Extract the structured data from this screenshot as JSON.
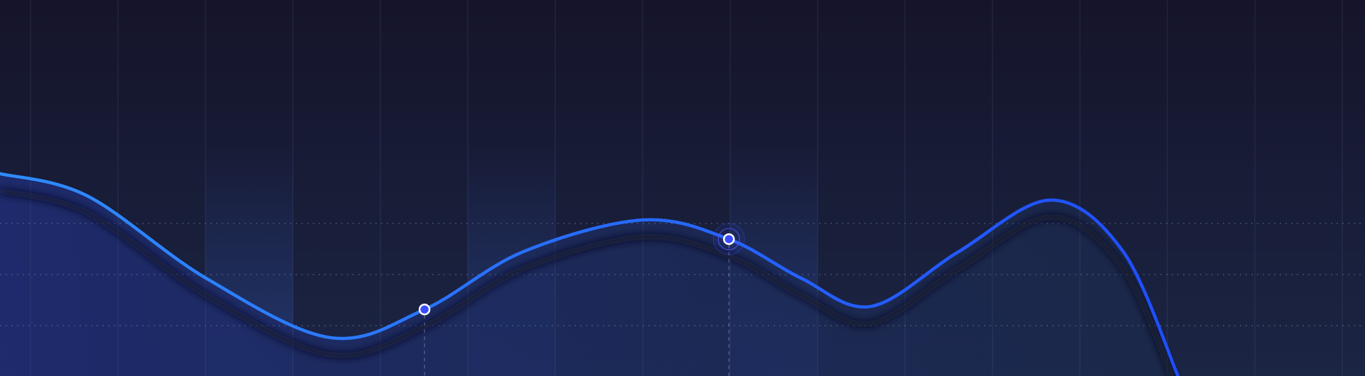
{
  "chart_data": {
    "type": "area",
    "title": "",
    "xlabel": "",
    "ylabel": "",
    "xlim": [
      0,
      100
    ],
    "ylim": [
      0,
      100
    ],
    "grid": {
      "vertical": true,
      "horizontal_dotted": true
    },
    "legend": "none",
    "series": [
      {
        "x": [
          0,
          6.4,
          15.1,
          24.2,
          31.1,
          38.3,
          47.1,
          53.4,
          58.7,
          63.8,
          70.2,
          77.0,
          82.3,
          86.3
        ],
        "y": [
          53.8,
          47.9,
          26.0,
          10.2,
          17.7,
          33.0,
          41.5,
          36.4,
          26.0,
          18.5,
          33.0,
          46.8,
          33.0,
          0
        ]
      }
    ],
    "markers": [
      {
        "index": 4,
        "style": "plain"
      },
      {
        "index": 7,
        "style": "halo"
      }
    ],
    "highlighted_columns": [
      3,
      6,
      9
    ],
    "colors": {
      "background_top": "#15142a",
      "background_bottom": "#1b2544",
      "line_start": "#2f8cff",
      "line_end": "#1f4dff",
      "area_left": "#1e2b6e",
      "area_right": "#1b2a4c",
      "marker_fill": "#3b4cff",
      "marker_stroke": "#ffffff"
    }
  }
}
